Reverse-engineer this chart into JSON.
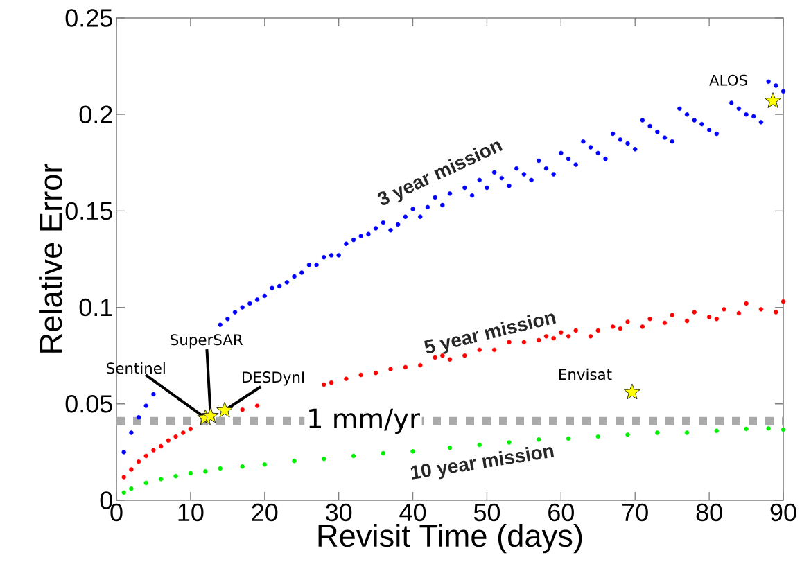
{
  "chart_data": {
    "type": "scatter",
    "xlabel": "Revisit Time (days)",
    "ylabel": "Relative Error",
    "xlim": [
      0,
      90
    ],
    "ylim": [
      0,
      0.25
    ],
    "xticks": [
      0,
      10,
      20,
      30,
      40,
      50,
      60,
      70,
      80,
      90
    ],
    "yticks": [
      0,
      0.05,
      0.1,
      0.15,
      0.2,
      0.25
    ],
    "marker": "circle",
    "series": [
      {
        "name": "3 year mission",
        "color": "#0000ff",
        "x": [
          1,
          2,
          3,
          4,
          5,
          14,
          15,
          16,
          17,
          18,
          19,
          20,
          21,
          22,
          23,
          24,
          25,
          26,
          27,
          28,
          29,
          30,
          31,
          32,
          33,
          34,
          35,
          36,
          37,
          38,
          39,
          40,
          41,
          42,
          43,
          44,
          45,
          47,
          48,
          49,
          50,
          51,
          52,
          53,
          54,
          55,
          56,
          57,
          58,
          59,
          60,
          61,
          62,
          63,
          64,
          65,
          66,
          67,
          68,
          69,
          70,
          71,
          72,
          73,
          74,
          75,
          76,
          77,
          78,
          79,
          80,
          81,
          83,
          84,
          85,
          86,
          87,
          88,
          89,
          90
        ],
        "values": [
          0.025,
          0.035,
          0.043,
          0.049,
          0.055,
          0.091,
          0.094,
          0.0975,
          0.1,
          0.102,
          0.104,
          0.106,
          0.11,
          0.111,
          0.113,
          0.116,
          0.118,
          0.122,
          0.122,
          0.126,
          0.127,
          0.127,
          0.133,
          0.135,
          0.137,
          0.138,
          0.141,
          0.144,
          0.14,
          0.143,
          0.147,
          0.151,
          0.147,
          0.152,
          0.157,
          0.153,
          0.159,
          0.162,
          0.158,
          0.166,
          0.162,
          0.17,
          0.167,
          0.163,
          0.172,
          0.169,
          0.166,
          0.176,
          0.172,
          0.169,
          0.18,
          0.177,
          0.174,
          0.186,
          0.183,
          0.18,
          0.177,
          0.19,
          0.187,
          0.185,
          0.182,
          0.197,
          0.194,
          0.191,
          0.188,
          0.186,
          0.203,
          0.2,
          0.197,
          0.195,
          0.192,
          0.19,
          0.206,
          0.203,
          0.2,
          0.199,
          0.196,
          0.217,
          0.215,
          0.212
        ]
      },
      {
        "name": "5 year mission",
        "color": "#ff0000",
        "x": [
          1,
          2,
          3,
          4,
          5,
          6,
          7,
          8,
          9,
          10,
          17,
          19,
          28,
          29,
          31,
          33,
          35,
          37,
          39,
          41,
          43,
          44,
          45,
          47,
          49,
          51,
          53,
          55,
          57,
          58,
          59,
          60,
          61,
          62,
          64,
          65,
          67,
          68,
          69,
          71,
          72,
          74,
          75,
          77,
          78,
          80,
          81,
          82,
          84,
          85,
          87,
          89,
          90
        ],
        "values": [
          0.012,
          0.016,
          0.02,
          0.023,
          0.026,
          0.028,
          0.031,
          0.033,
          0.035,
          0.037,
          0.047,
          0.049,
          0.06,
          0.061,
          0.063,
          0.065,
          0.066,
          0.068,
          0.069,
          0.07,
          0.074,
          0.075,
          0.073,
          0.075,
          0.078,
          0.078,
          0.082,
          0.082,
          0.083,
          0.085,
          0.084,
          0.087,
          0.085,
          0.088,
          0.085,
          0.088,
          0.09,
          0.089,
          0.0925,
          0.09,
          0.094,
          0.092,
          0.096,
          0.093,
          0.0975,
          0.095,
          0.094,
          0.099,
          0.097,
          0.102,
          0.099,
          0.0975,
          0.103
        ]
      },
      {
        "name": "10 year mission",
        "color": "#00ee00",
        "x": [
          1,
          2,
          4,
          6,
          8,
          10,
          12,
          14,
          17,
          20,
          24,
          28,
          32,
          36,
          40,
          45,
          49,
          53,
          57,
          61,
          65,
          69,
          73,
          77,
          81,
          85,
          88,
          90
        ],
        "values": [
          0.004,
          0.006,
          0.009,
          0.011,
          0.0125,
          0.014,
          0.015,
          0.0165,
          0.0175,
          0.0186,
          0.0204,
          0.0215,
          0.023,
          0.0244,
          0.0254,
          0.0272,
          0.0287,
          0.03,
          0.0315,
          0.032,
          0.033,
          0.034,
          0.035,
          0.035,
          0.036,
          0.037,
          0.0373,
          0.0366
        ]
      },
      {
        "color": "#ffff00",
        "marker": "star",
        "x": [
          88.6,
          69.6,
          12.0,
          12.7,
          14.6
        ],
        "values": [
          0.207,
          0.056,
          0.0427,
          0.0437,
          0.0466
        ]
      }
    ],
    "ref_lines": [
      {
        "axis": "y",
        "value": 0.041,
        "label": "1 mm/yr",
        "color": "#aaaaaa",
        "line_style": "dashed"
      }
    ],
    "annotations": [
      {
        "text": "ALOS",
        "x": 88.6,
        "y": 0.207
      },
      {
        "text": "Envisat",
        "x": 69.6,
        "y": 0.056
      },
      {
        "text": "Sentinel",
        "x": 12.0,
        "y": 0.0427
      },
      {
        "text": "SuperSAR",
        "x": 12.7,
        "y": 0.0437
      },
      {
        "text": "DESDynI",
        "x": 14.6,
        "y": 0.0466
      }
    ]
  }
}
